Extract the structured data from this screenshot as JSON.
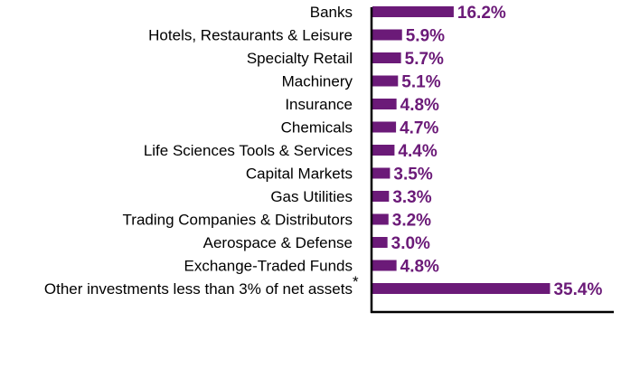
{
  "chart_data": {
    "type": "bar",
    "orientation": "horizontal",
    "categories": [
      "Banks",
      "Hotels, Restaurants & Leisure",
      "Specialty Retail",
      "Machinery",
      "Insurance",
      "Chemicals",
      "Life Sciences Tools & Services",
      "Capital Markets",
      "Gas Utilities",
      "Trading Companies & Distributors",
      "Aerospace & Defense",
      "Exchange-Traded Funds",
      "Other investments less than 3% of net assets"
    ],
    "footnote_marks": [
      "",
      "",
      "",
      "",
      "",
      "",
      "",
      "",
      "",
      "",
      "",
      "",
      "*"
    ],
    "values": [
      16.2,
      5.9,
      5.7,
      5.1,
      4.8,
      4.7,
      4.4,
      3.5,
      3.3,
      3.2,
      3.0,
      4.8,
      35.4
    ],
    "value_labels": [
      "16.2%",
      "5.9%",
      "5.7%",
      "5.1%",
      "4.8%",
      "4.7%",
      "4.4%",
      "3.5%",
      "3.3%",
      "3.2%",
      "3.0%",
      "4.8%",
      "35.4%"
    ],
    "bar_color": "#6b1a78",
    "label_color": "#6b1a78",
    "axis_color": "#000000",
    "xlim": [
      0,
      50
    ],
    "grid": false,
    "legend": "none"
  }
}
